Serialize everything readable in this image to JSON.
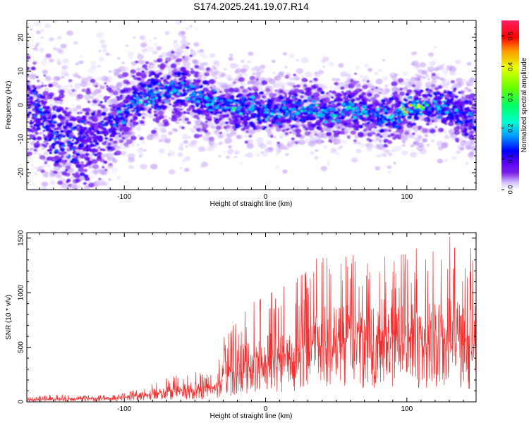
{
  "title": "S174.2025.241.19.07.R14",
  "chart_data": [
    {
      "type": "heatmap",
      "title": "S174.2025.241.19.07.R14",
      "xlabel": "Height of straight line (km)",
      "ylabel": "Frequency (Hz)",
      "xlim": [
        -169,
        149
      ],
      "ylim": [
        -25,
        25
      ],
      "xticks": [
        -100,
        0,
        100
      ],
      "yticks": [
        -20,
        -10,
        0,
        10,
        20
      ],
      "colorbar": {
        "label": "Normalized spectral amplitude",
        "range": [
          0.0,
          0.55
        ],
        "ticks": [
          "0.0",
          "0.1",
          "0.2",
          "0.3",
          "0.4",
          "0.5"
        ],
        "colors": [
          "#ffffff",
          "#d8c4ff",
          "#7a1fe6",
          "#5a00ff",
          "#0000ff",
          "#00a0ff",
          "#00ffd0",
          "#00ff60",
          "#66ff00",
          "#e8ff00",
          "#ff9a00",
          "#ff0000",
          "#ff1e64"
        ]
      },
      "ridge": {
        "x": [
          -169,
          -150,
          -135,
          -120,
          -110,
          -100,
          -90,
          -80,
          -70,
          -60,
          -50,
          -40,
          -30,
          -20,
          -10,
          0,
          10,
          20,
          30,
          40,
          50,
          60,
          70,
          80,
          90,
          100,
          110,
          120,
          130,
          140,
          149
        ],
        "center_hz": [
          2,
          -8,
          -12,
          -9,
          -6,
          -2,
          2,
          3,
          4,
          5,
          3,
          1,
          0,
          -1,
          -1,
          -2,
          -2,
          -1,
          -1,
          -2,
          -2,
          -1,
          -2,
          -3,
          -4,
          -1,
          0,
          0,
          0,
          -3,
          -4
        ],
        "peak_amplitude": [
          0.15,
          0.18,
          0.17,
          0.12,
          0.16,
          0.22,
          0.25,
          0.24,
          0.23,
          0.24,
          0.22,
          0.25,
          0.25,
          0.28,
          0.28,
          0.26,
          0.26,
          0.29,
          0.29,
          0.29,
          0.29,
          0.29,
          0.26,
          0.24,
          0.22,
          0.48,
          0.4,
          0.28,
          0.26,
          0.2,
          0.22
        ]
      }
    },
    {
      "type": "line",
      "xlabel": "Height of straight line (km)",
      "ylabel": "SNR (10 * v/v)",
      "xlim": [
        -169,
        149
      ],
      "ylim": [
        0,
        1550
      ],
      "xticks": [
        -100,
        0,
        100
      ],
      "yticks": [
        0,
        500,
        1000,
        1500
      ],
      "line_color": "#f03030",
      "series": [
        {
          "name": "SNR",
          "x": [
            -169,
            -150,
            -130,
            -110,
            -100,
            -90,
            -80,
            -70,
            -60,
            -50,
            -40,
            -35,
            -30,
            -20,
            -10,
            0,
            10,
            20,
            30,
            40,
            50,
            60,
            70,
            80,
            90,
            100,
            110,
            120,
            130,
            140,
            149
          ],
          "baseline": [
            15,
            20,
            25,
            30,
            35,
            45,
            60,
            80,
            90,
            95,
            110,
            130,
            190,
            260,
            300,
            340,
            360,
            380,
            430,
            470,
            500,
            520,
            520,
            510,
            480,
            500,
            520,
            500,
            500,
            480,
            460
          ],
          "peak": [
            40,
            70,
            60,
            60,
            80,
            120,
            200,
            220,
            250,
            300,
            250,
            400,
            600,
            800,
            900,
            1000,
            1050,
            1150,
            1250,
            1380,
            1330,
            1360,
            1300,
            1550,
            1350,
            1450,
            1400,
            1450,
            1540,
            1500,
            1450
          ]
        }
      ]
    }
  ]
}
